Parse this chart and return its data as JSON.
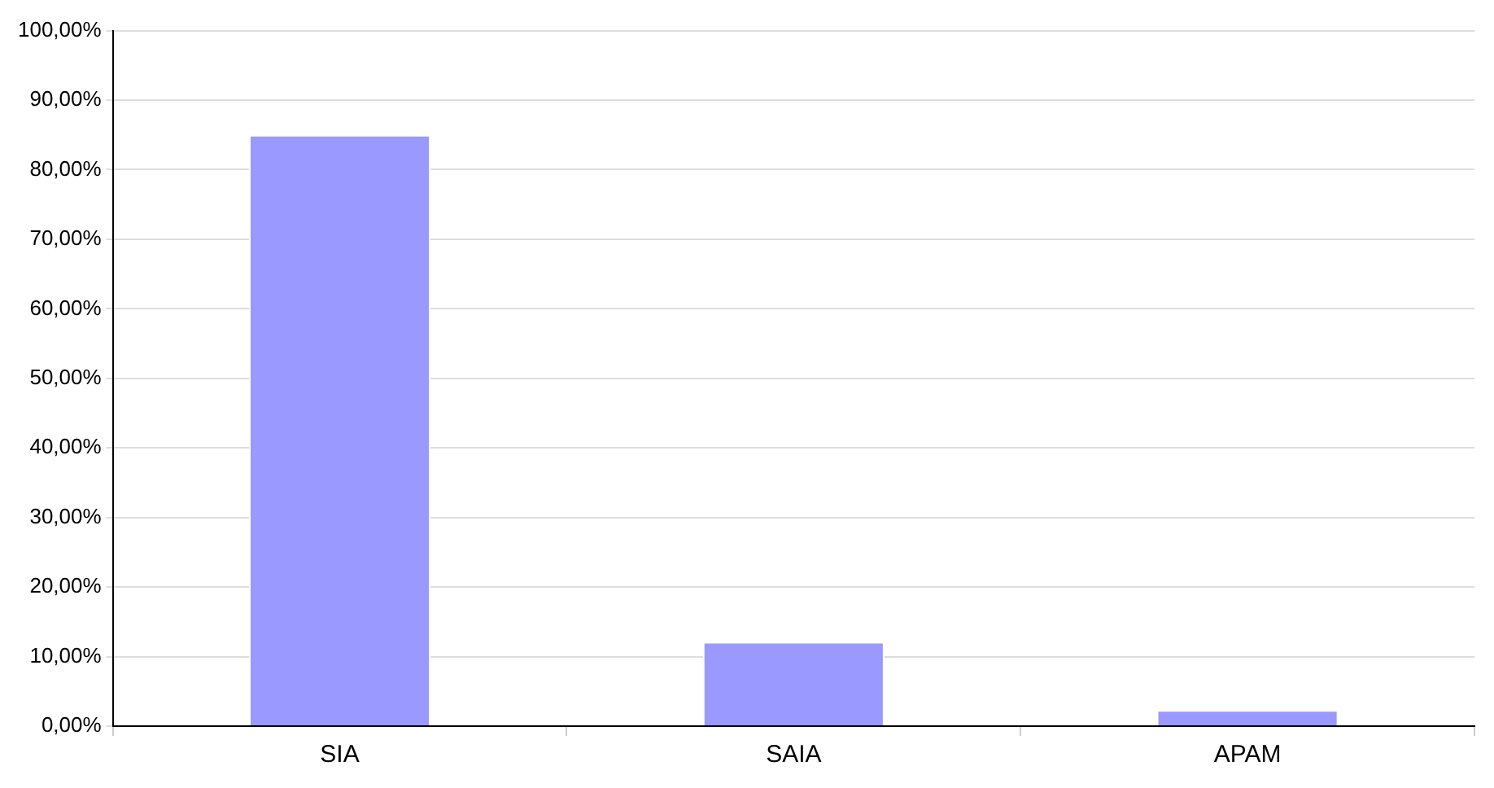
{
  "chart_data": {
    "type": "bar",
    "categories": [
      "SIA",
      "SAIA",
      "APAM"
    ],
    "values": [
      85,
      12.1,
      2.3
    ],
    "color": "#9999ff",
    "ylim": [
      0,
      100
    ],
    "yticks": [
      {
        "value": 0,
        "label": "0,00%"
      },
      {
        "value": 10,
        "label": "10,00%"
      },
      {
        "value": 20,
        "label": "20,00%"
      },
      {
        "value": 30,
        "label": "30,00%"
      },
      {
        "value": 40,
        "label": "40,00%"
      },
      {
        "value": 50,
        "label": "50,00%"
      },
      {
        "value": 60,
        "label": "60,00%"
      },
      {
        "value": 70,
        "label": "70,00%"
      },
      {
        "value": 80,
        "label": "80,00%"
      },
      {
        "value": 90,
        "label": "90,00%"
      },
      {
        "value": 100,
        "label": "100,00%"
      }
    ],
    "grid": "y",
    "legend": false
  }
}
